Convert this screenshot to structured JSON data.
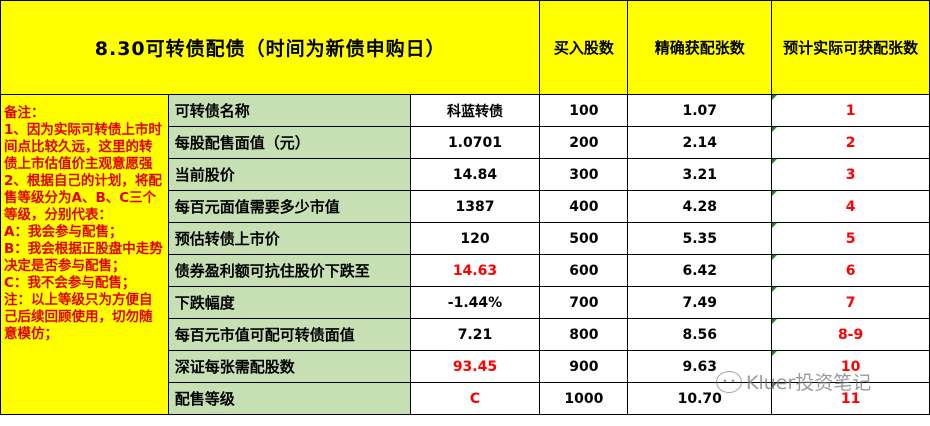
{
  "header": {
    "title": "8.30可转债配债（时间为新债申购日）",
    "col_shares": "买入股数",
    "col_exact": "精确获配张数",
    "col_expected": "预计实际可获配张数"
  },
  "notes": "备注：\n1、因为实际可转债上市时间点比较久远，这里的转债上市估值价主观意愿强\n2、根据自己的计划，将配售等级分为A、B、C三个等级，分别代表：\nA：我会参与配售；\nB：我会根据正股盘中走势决定是否参与配售；\nC：我不会参与配售；\n注：以上等级只为方便自己后续回顾使用，切勿随意模仿；",
  "rows": [
    {
      "label": "可转债名称",
      "value": "科蓝转债",
      "shares": "100",
      "exact": "1.07",
      "expected": "1"
    },
    {
      "label": "每股配售面值（元）",
      "value": "1.0701",
      "shares": "200",
      "exact": "2.14",
      "expected": "2"
    },
    {
      "label": "当前股价",
      "value": "14.84",
      "shares": "300",
      "exact": "3.21",
      "expected": "3"
    },
    {
      "label": "每百元面值需要多少市值",
      "value": "1387",
      "shares": "400",
      "exact": "4.28",
      "expected": "4"
    },
    {
      "label": "预估转债上市价",
      "value": "120",
      "shares": "500",
      "exact": "5.35",
      "expected": "5"
    },
    {
      "label": "债券盈利额可抗住股价下跌至",
      "value": "14.63",
      "shares": "600",
      "exact": "6.42",
      "expected": "6",
      "value_red": true
    },
    {
      "label": "下跌幅度",
      "value": "-1.44%",
      "shares": "700",
      "exact": "7.49",
      "expected": "7"
    },
    {
      "label": "每百元市值可配可转债面值",
      "value": "7.21",
      "shares": "800",
      "exact": "8.56",
      "expected": "8-9"
    },
    {
      "label": "深证每张需配股数",
      "value": "93.45",
      "shares": "900",
      "exact": "9.63",
      "expected": "10",
      "value_red": true
    },
    {
      "label": "配售等级",
      "value": "C",
      "shares": "1000",
      "exact": "10.70",
      "expected": "11",
      "value_red": true
    }
  ],
  "watermark": "Kluer投资笔记",
  "colors": {
    "yellow": "#ffff00",
    "green": "#c6e0b4",
    "red": "#ff0000"
  }
}
